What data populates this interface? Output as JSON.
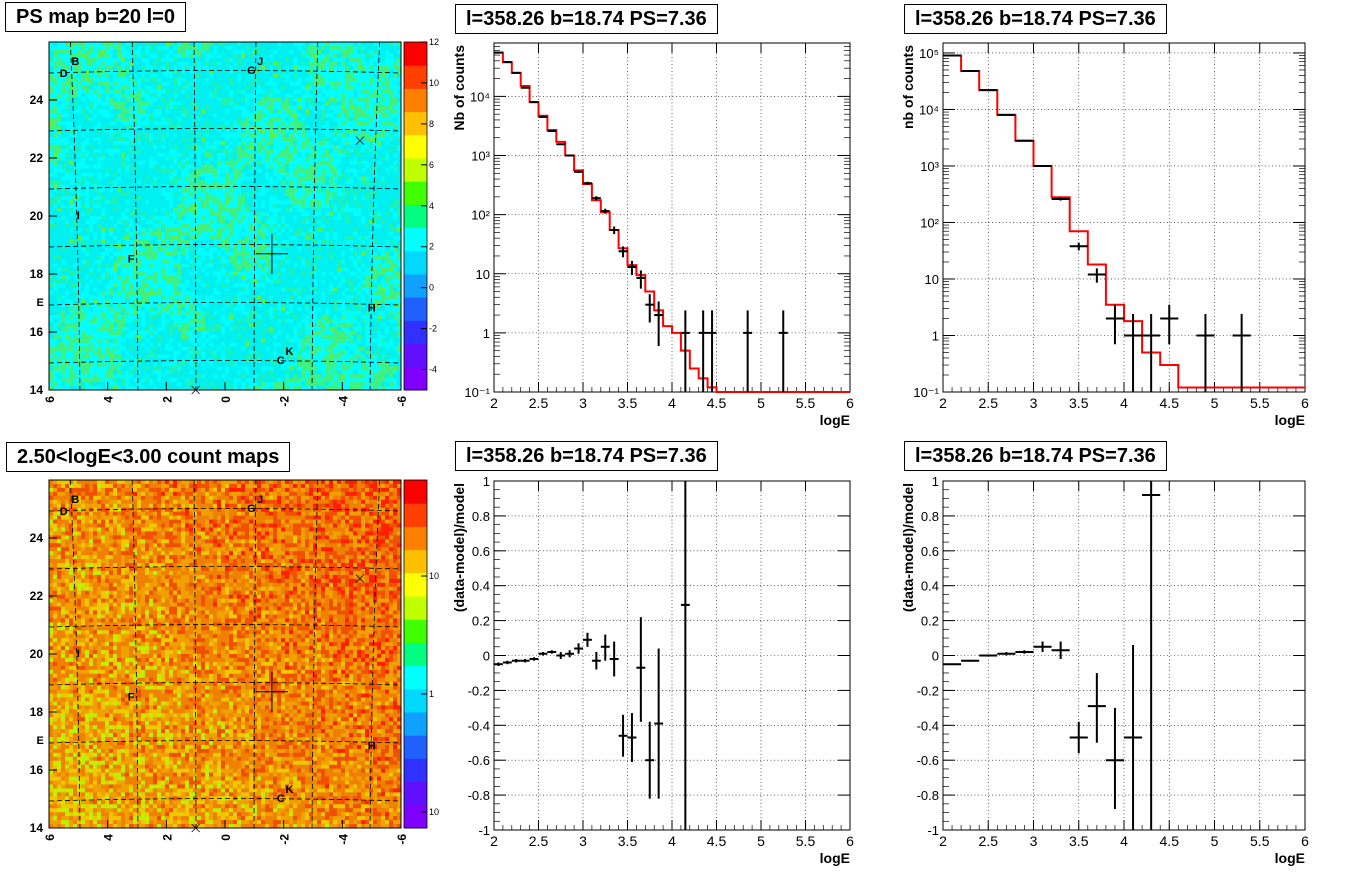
{
  "panels": {
    "ps_map": {
      "title": "PS map b=20 l=0"
    },
    "count_map": {
      "title": "2.50<logE<3.00 count maps"
    },
    "spec1": {
      "title": "l=358.26 b=18.74 PS=7.36"
    },
    "spec2": {
      "title": "l=358.26 b=18.74 PS=7.36"
    },
    "res1": {
      "title": "l=358.26 b=18.74 PS=7.36"
    },
    "res2": {
      "title": "l=358.26 b=18.74 PS=7.36"
    }
  },
  "colors": {
    "model_line": "#ff0000",
    "data": "#000000",
    "ps_map_bg": "#00f0f0",
    "count_map_bg": "#f07000"
  },
  "chart_data": [
    {
      "id": "ps_map",
      "type": "heatmap",
      "title": "PS map b=20 l=0",
      "xlim": [
        6,
        -6
      ],
      "ylim": [
        14,
        26
      ],
      "x_ticks": [
        "6",
        "4",
        "2",
        "0",
        "-2",
        "-4",
        "-6"
      ],
      "y_ticks": [
        "14",
        "16",
        "18",
        "20",
        "22",
        "24"
      ],
      "colorbar": {
        "scale": "linear",
        "range": [
          -5,
          12
        ],
        "tick_labels": [
          "12",
          "10",
          "8",
          "6",
          "4",
          "2",
          "0",
          "-2",
          "-4"
        ],
        "colors": [
          "#8000ff",
          "#6010ff",
          "#3030ff",
          "#2060ff",
          "#10a0ff",
          "#00d8ff",
          "#00ffff",
          "#00ff80",
          "#40ff00",
          "#c0ff00",
          "#ffff00",
          "#ffc000",
          "#ff8000",
          "#ff4000",
          "#ff0000"
        ]
      },
      "labels": [
        {
          "text": "B",
          "l": 5.1,
          "b": 25.2
        },
        {
          "text": "D",
          "l": 5.5,
          "b": 24.8
        },
        {
          "text": "J",
          "l": -1.2,
          "b": 25.2
        },
        {
          "text": "G",
          "l": -0.9,
          "b": 24.9
        },
        {
          "text": "I",
          "l": 5.0,
          "b": 19.9
        },
        {
          "text": "F",
          "l": 3.2,
          "b": 18.4
        },
        {
          "text": "E",
          "l": 6.3,
          "b": 16.9
        },
        {
          "text": "H",
          "l": -5.0,
          "b": 16.7
        },
        {
          "text": "K",
          "l": -2.2,
          "b": 15.2
        },
        {
          "text": "C",
          "l": -1.9,
          "b": 14.9
        }
      ],
      "markers": [
        {
          "symbol": "cross-large",
          "l": -1.6,
          "b": 18.7
        },
        {
          "symbol": "x",
          "l": -4.6,
          "b": 22.6
        },
        {
          "symbol": "x",
          "l": 1.0,
          "b": 14.0
        }
      ]
    },
    {
      "id": "count_map",
      "type": "heatmap",
      "title": "2.50<logE<3.00 count maps",
      "xlim": [
        6,
        -6
      ],
      "ylim": [
        14,
        26
      ],
      "x_ticks": [
        "6",
        "4",
        "2",
        "0",
        "-2",
        "-4",
        "-6"
      ],
      "y_ticks": [
        "14",
        "16",
        "18",
        "20",
        "22",
        "24"
      ],
      "colorbar": {
        "scale": "log",
        "tick_labels": [
          "10",
          "1",
          "10⁻¹"
        ],
        "colors": [
          "#8000ff",
          "#6010ff",
          "#3030ff",
          "#2060ff",
          "#10a0ff",
          "#00d8ff",
          "#00ffff",
          "#00ff80",
          "#40ff00",
          "#c0ff00",
          "#ffff00",
          "#ffc000",
          "#ff8000",
          "#ff4000",
          "#ff0000"
        ]
      },
      "labels": [
        {
          "text": "B",
          "l": 5.1,
          "b": 25.2
        },
        {
          "text": "D",
          "l": 5.5,
          "b": 24.8
        },
        {
          "text": "J",
          "l": -1.2,
          "b": 25.2
        },
        {
          "text": "G",
          "l": -0.9,
          "b": 24.9
        },
        {
          "text": "I",
          "l": 5.0,
          "b": 19.9
        },
        {
          "text": "F",
          "l": 3.2,
          "b": 18.4
        },
        {
          "text": "E",
          "l": 6.3,
          "b": 16.9
        },
        {
          "text": "H",
          "l": -5.0,
          "b": 16.7
        },
        {
          "text": "K",
          "l": -2.2,
          "b": 15.2
        },
        {
          "text": "C",
          "l": -1.9,
          "b": 14.9
        }
      ],
      "markers": [
        {
          "symbol": "cross-large",
          "l": -1.6,
          "b": 18.7
        },
        {
          "symbol": "x",
          "l": -4.6,
          "b": 22.6
        },
        {
          "symbol": "x",
          "l": 1.0,
          "b": 14.0
        }
      ]
    },
    {
      "id": "spec1",
      "type": "line",
      "title": "l=358.26 b=18.74 PS=7.36",
      "xlabel": "logE",
      "ylabel": "Nb of counts",
      "xlim": [
        2,
        6
      ],
      "yscale": "log",
      "ylim": [
        0.1,
        80000
      ],
      "x_ticks": [
        "2",
        "2.5",
        "3",
        "3.5",
        "4",
        "4.5",
        "5",
        "5.5",
        "6"
      ],
      "y_ticks": [
        {
          "v": 0.1,
          "t": "10⁻¹"
        },
        {
          "v": 1,
          "t": "1"
        },
        {
          "v": 10,
          "t": "10"
        },
        {
          "v": 100,
          "t": "10²"
        },
        {
          "v": 1000,
          "t": "10³"
        },
        {
          "v": 10000,
          "t": "10⁴"
        }
      ],
      "grid": true,
      "series": [
        {
          "kind": "step",
          "edges": [
            2,
            2.1,
            2.2,
            2.3,
            2.4,
            2.5,
            2.6,
            2.7,
            2.8,
            2.9,
            3.0,
            3.1,
            3.2,
            3.3,
            3.4,
            3.5,
            3.6,
            3.7,
            3.8,
            3.9,
            4.0,
            4.1,
            4.2,
            4.3,
            4.4,
            4.5,
            4.6,
            6.0
          ],
          "values": [
            55000,
            38000,
            25000,
            15000,
            8000,
            4700,
            2700,
            1700,
            1000,
            560,
            330,
            175,
            110,
            55,
            27,
            14,
            9.5,
            5,
            2.4,
            1.3,
            1.0,
            0.5,
            0.25,
            0.17,
            0.12,
            0.1,
            0.1
          ]
        },
        {
          "kind": "points",
          "x": [
            2.05,
            2.15,
            2.25,
            2.35,
            2.45,
            2.55,
            2.65,
            2.75,
            2.85,
            2.95,
            3.05,
            3.15,
            3.25,
            3.35,
            3.45,
            3.55,
            3.65,
            3.75,
            3.85,
            4.15,
            4.35,
            4.45,
            4.85,
            5.25
          ],
          "y": [
            55000,
            38000,
            25000,
            14000,
            8000,
            4500,
            2600,
            1550,
            1000,
            530,
            340,
            190,
            115,
            55,
            24,
            13,
            8.5,
            3,
            2,
            1,
            1,
            1,
            1,
            1
          ],
          "xerr": [
            0.05,
            0.05,
            0.05,
            0.05,
            0.05,
            0.05,
            0.05,
            0.05,
            0.05,
            0.05,
            0.05,
            0.05,
            0.05,
            0.05,
            0.05,
            0.05,
            0.05,
            0.05,
            0.05,
            0.05,
            0.05,
            0.05,
            0.05,
            0.05
          ],
          "ylo": [
            54800,
            37800,
            24800,
            13880,
            7900,
            4430,
            2550,
            1510,
            970,
            510,
            320,
            175,
            104,
            47,
            19,
            9.5,
            5.6,
            1.5,
            0.6,
            0.1,
            0.1,
            0.1,
            0.1,
            0.1
          ],
          "yhi": [
            55200,
            38200,
            25200,
            14120,
            8100,
            4570,
            2650,
            1590,
            1030,
            550,
            360,
            205,
            126,
            63,
            29,
            16.5,
            11.4,
            4.5,
            3.4,
            2.4,
            2.4,
            2.4,
            2.4,
            2.4
          ]
        }
      ]
    },
    {
      "id": "spec2",
      "type": "line",
      "title": "l=358.26 b=18.74 PS=7.36",
      "xlabel": "logE",
      "ylabel": "nb of counts",
      "xlim": [
        2,
        6
      ],
      "yscale": "log",
      "ylim": [
        0.1,
        150000
      ],
      "x_ticks": [
        "2",
        "2.5",
        "3",
        "3.5",
        "4",
        "4.5",
        "5",
        "5.5",
        "6"
      ],
      "y_ticks": [
        {
          "v": 0.1,
          "t": "10⁻¹"
        },
        {
          "v": 1,
          "t": "1"
        },
        {
          "v": 10,
          "t": "10"
        },
        {
          "v": 100,
          "t": "10²"
        },
        {
          "v": 1000,
          "t": "10³"
        },
        {
          "v": 10000,
          "t": "10⁴"
        },
        {
          "v": 100000,
          "t": "10⁵"
        }
      ],
      "grid": true,
      "series": [
        {
          "kind": "step",
          "edges": [
            2,
            2.2,
            2.4,
            2.6,
            2.8,
            3.0,
            3.2,
            3.4,
            3.6,
            3.8,
            4.0,
            4.2,
            4.4,
            4.6,
            6.0
          ],
          "values": [
            90000,
            48000,
            22000,
            8000,
            2800,
            1000,
            280,
            70,
            18,
            3.5,
            1.8,
            0.5,
            0.3,
            0.12
          ]
        },
        {
          "kind": "points",
          "x": [
            2.1,
            2.3,
            2.5,
            2.7,
            2.9,
            3.1,
            3.3,
            3.5,
            3.7,
            3.9,
            4.1,
            4.3,
            4.5,
            4.9,
            5.3
          ],
          "y": [
            90000,
            48000,
            22000,
            8000,
            2800,
            1000,
            260,
            38,
            12,
            2,
            1,
            1,
            2,
            1,
            1
          ],
          "xerr": [
            0.1,
            0.1,
            0.1,
            0.1,
            0.1,
            0.1,
            0.1,
            0.1,
            0.1,
            0.1,
            0.1,
            0.1,
            0.1,
            0.1,
            0.1
          ],
          "ylo": [
            89700,
            47800,
            21850,
            7910,
            2750,
            970,
            244,
            32,
            8.6,
            0.7,
            0.1,
            0.1,
            0.7,
            0.1,
            0.1
          ],
          "yhi": [
            90300,
            48200,
            22150,
            8090,
            2850,
            1030,
            276,
            44,
            15.4,
            3.5,
            2.4,
            2.4,
            3.5,
            2.4,
            2.4
          ]
        }
      ]
    },
    {
      "id": "res1",
      "type": "scatter",
      "title": "l=358.26 b=18.74 PS=7.36",
      "xlabel": "logE",
      "ylabel": "(data-model)/model",
      "xlim": [
        2,
        6
      ],
      "ylim": [
        -1,
        1
      ],
      "x_ticks": [
        "2",
        "2.5",
        "3",
        "3.5",
        "4",
        "4.5",
        "5",
        "5.5",
        "6"
      ],
      "y_ticks": [
        "-1",
        "-0.8",
        "-0.6",
        "-0.4",
        "-0.2",
        "0",
        "0.2",
        "0.4",
        "0.6",
        "0.8",
        "1"
      ],
      "grid": true,
      "series": [
        {
          "kind": "points",
          "x": [
            2.05,
            2.15,
            2.25,
            2.35,
            2.45,
            2.55,
            2.65,
            2.75,
            2.85,
            2.95,
            3.05,
            3.15,
            3.25,
            3.35,
            3.45,
            3.55,
            3.65,
            3.75,
            3.85,
            4.15
          ],
          "y": [
            -0.05,
            -0.04,
            -0.03,
            -0.03,
            -0.02,
            0.01,
            0.02,
            0.0,
            0.01,
            0.04,
            0.09,
            -0.03,
            0.05,
            -0.02,
            -0.46,
            -0.47,
            -0.07,
            -0.6,
            -0.39,
            0.29
          ],
          "xerr": [
            0.05,
            0.05,
            0.05,
            0.05,
            0.05,
            0.05,
            0.05,
            0.05,
            0.05,
            0.05,
            0.05,
            0.05,
            0.05,
            0.05,
            0.05,
            0.05,
            0.05,
            0.05,
            0.05,
            0.05
          ],
          "ylo": [
            -0.06,
            -0.05,
            -0.04,
            -0.04,
            -0.03,
            0.0,
            0.01,
            -0.02,
            -0.01,
            0.01,
            0.05,
            -0.08,
            -0.03,
            -0.12,
            -0.58,
            -0.61,
            -0.38,
            -0.82,
            -0.82,
            -1.0
          ],
          "yhi": [
            -0.04,
            -0.03,
            -0.02,
            -0.02,
            -0.01,
            0.02,
            0.03,
            0.02,
            0.03,
            0.07,
            0.13,
            0.02,
            0.12,
            0.08,
            -0.34,
            -0.33,
            0.22,
            -0.38,
            0.04,
            1.0
          ]
        }
      ]
    },
    {
      "id": "res2",
      "type": "scatter",
      "title": "l=358.26 b=18.74 PS=7.36",
      "xlabel": "logE",
      "ylabel": "(data-model)/model",
      "xlim": [
        2,
        6
      ],
      "ylim": [
        -1,
        1
      ],
      "x_ticks": [
        "2",
        "2.5",
        "3",
        "3.5",
        "4",
        "4.5",
        "5",
        "5.5",
        "6"
      ],
      "y_ticks": [
        "-1",
        "-0.8",
        "-0.6",
        "-0.4",
        "-0.2",
        "0",
        "0.2",
        "0.4",
        "0.6",
        "0.8",
        "1"
      ],
      "grid": true,
      "series": [
        {
          "kind": "points",
          "x": [
            2.1,
            2.3,
            2.5,
            2.7,
            2.9,
            3.1,
            3.3,
            3.5,
            3.7,
            3.9,
            4.1,
            4.3
          ],
          "y": [
            -0.05,
            -0.03,
            0.0,
            0.01,
            0.02,
            0.05,
            0.03,
            -0.47,
            -0.29,
            -0.6,
            -0.47,
            0.92
          ],
          "xerr": [
            0.1,
            0.1,
            0.1,
            0.1,
            0.1,
            0.1,
            0.1,
            0.1,
            0.1,
            0.1,
            0.1,
            0.1
          ],
          "ylo": [
            -0.055,
            -0.035,
            -0.005,
            0.0,
            0.01,
            0.02,
            -0.02,
            -0.56,
            -0.5,
            -0.88,
            -1.0,
            -1.0
          ],
          "yhi": [
            -0.045,
            -0.025,
            0.005,
            0.02,
            0.03,
            0.08,
            0.08,
            -0.38,
            -0.1,
            -0.3,
            0.06,
            1.0
          ]
        }
      ]
    }
  ]
}
